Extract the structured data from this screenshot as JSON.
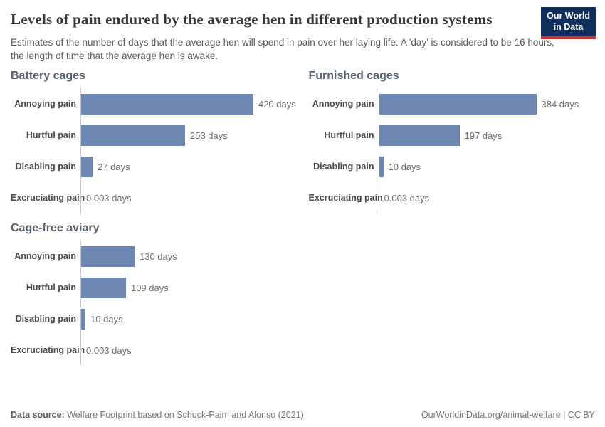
{
  "header": {
    "title": "Levels of pain endured by the average hen in different production systems",
    "subtitle": "Estimates of the number of days that the average hen will spend in pain over her laying life. A 'day' is considered to be 16 hours, the length of time that the average hen is awake.",
    "logo": {
      "line1": "Our World",
      "line2": "in Data"
    }
  },
  "chart_data": [
    {
      "type": "bar",
      "orientation": "horizontal",
      "title": "Battery cages",
      "categories": [
        "Annoying pain",
        "Hurtful pain",
        "Disabling pain",
        "Excruciating pain"
      ],
      "values": [
        420,
        253,
        27,
        0.003
      ],
      "value_labels": [
        "420 days",
        "253 days",
        "27 days",
        "0.003 days"
      ],
      "unit": "days",
      "xlabel": "",
      "xlim": [
        0,
        420
      ],
      "grid": false,
      "legend": "none"
    },
    {
      "type": "bar",
      "orientation": "horizontal",
      "title": "Furnished cages",
      "categories": [
        "Annoying pain",
        "Hurtful pain",
        "Disabling pain",
        "Excruciating pain"
      ],
      "values": [
        384,
        197,
        10,
        0.003
      ],
      "value_labels": [
        "384 days",
        "197 days",
        "10 days",
        "0.003 days"
      ],
      "unit": "days",
      "xlabel": "",
      "xlim": [
        0,
        420
      ],
      "grid": false,
      "legend": "none"
    },
    {
      "type": "bar",
      "orientation": "horizontal",
      "title": "Cage-free aviary",
      "categories": [
        "Annoying pain",
        "Hurtful pain",
        "Disabling pain",
        "Excruciating pain"
      ],
      "values": [
        130,
        109,
        10,
        0.003
      ],
      "value_labels": [
        "130 days",
        "109 days",
        "10 days",
        "0.003 days"
      ],
      "unit": "days",
      "xlabel": "",
      "xlim": [
        0,
        420
      ],
      "grid": false,
      "legend": "none"
    }
  ],
  "footer": {
    "source_label": "Data source:",
    "source_text": " Welfare Footprint based on Schuck-Paim and Alonso (2021)",
    "right_text": "OurWorldinData.org/animal-welfare | CC BY"
  },
  "colors": {
    "bar": "#6e87b2",
    "axis": "#c9c9c9",
    "logo_bg": "#0f2e5a",
    "logo_red": "#cf3530",
    "title": "#383838"
  }
}
